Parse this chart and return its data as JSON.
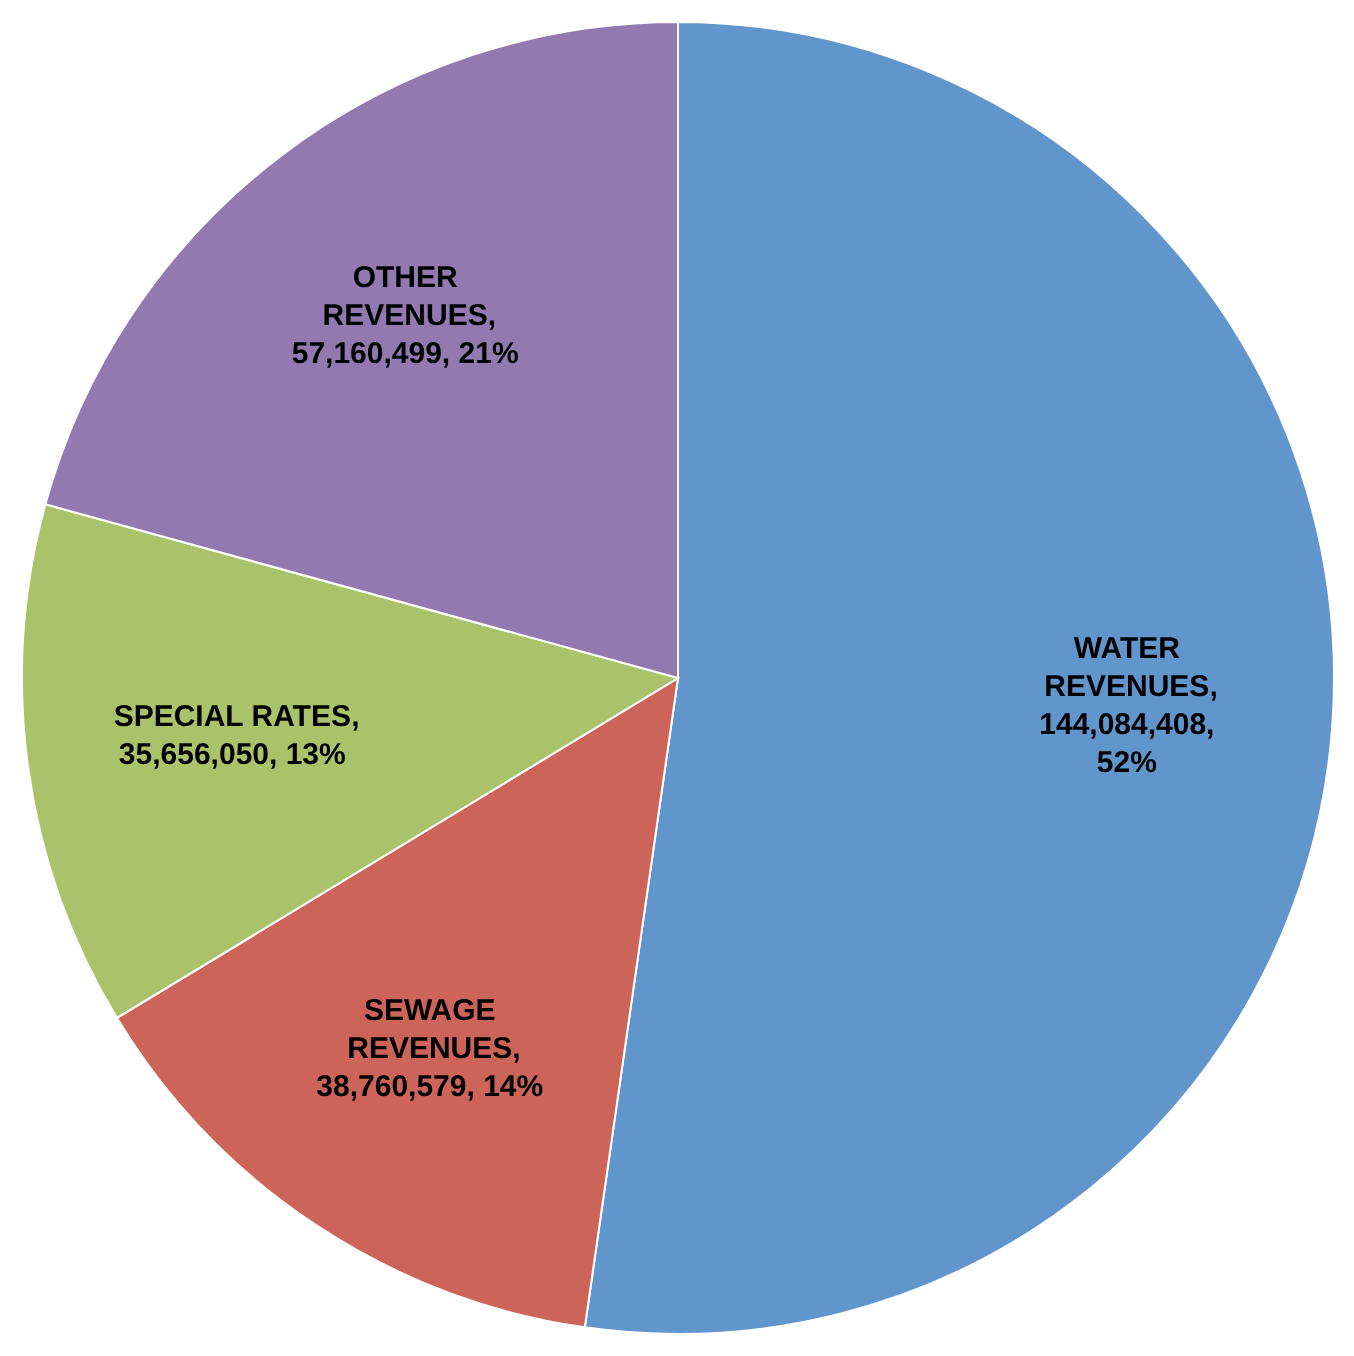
{
  "chart_data": {
    "type": "pie",
    "categories": [
      "WATER REVENUES",
      "SEWAGE REVENUES",
      "SPECIAL RATES",
      "OTHER REVENUES"
    ],
    "values": [
      144084408,
      38760579,
      35656050,
      57160499
    ],
    "value_labels": [
      ", 144,084,408, 52%",
      ", 38,760,579, 14%",
      ", 35,656,050, 13%",
      ", 57,160,499, 21%"
    ],
    "colors": [
      "#6096cb",
      "#cd645a",
      "#aac36a",
      "#9279b0"
    ]
  }
}
